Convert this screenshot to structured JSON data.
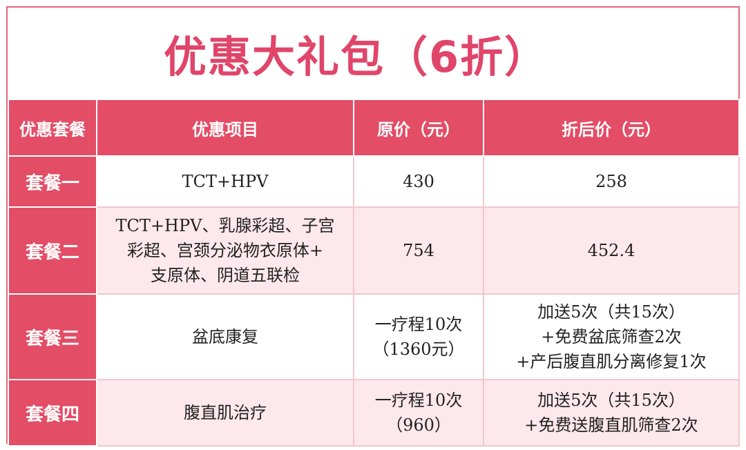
{
  "title": "优惠大礼包（6折）",
  "headers": [
    "优惠套餐",
    "优惠项目",
    "原价（元）",
    "折后价（元）"
  ],
  "rows": [
    {
      "name": "套餐一",
      "items": [
        "TCT+HPV"
      ],
      "original": [
        "430"
      ],
      "discounted": [
        "258"
      ]
    },
    {
      "name": "套餐二",
      "items": [
        "TCT+HPV、乳腺彩超、子宫",
        "彩超、宫颈分泌物衣原体+",
        "支原体、阴道五联检"
      ],
      "original": [
        "754"
      ],
      "discounted": [
        "452.4"
      ]
    },
    {
      "name": "套餐三",
      "items": [
        "盆底康复"
      ],
      "original": [
        "一疗程10次",
        "（1360元）"
      ],
      "discounted": [
        "加送5次（共15次）",
        "+免费盆底筛查2次",
        "+产后腹直肌分离修复1次"
      ]
    },
    {
      "name": "套餐四",
      "items": [
        "腹直肌治疗"
      ],
      "original": [
        "一疗程10次",
        "（960）"
      ],
      "discounted": [
        "加送5次（共15次）",
        "+免费送腹直肌筛查2次"
      ]
    }
  ],
  "colors": {
    "accent": "#e34d66",
    "title": "#e0456a",
    "row_tint": "#fde8ec",
    "border": "#e06a7c"
  }
}
